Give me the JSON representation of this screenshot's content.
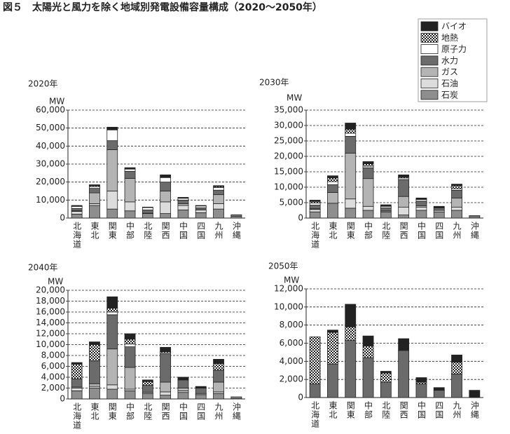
{
  "title": "図５　太陽光と風力を除く地域別発電設備容量構成（2020〜2050年）",
  "legend": {
    "position": "upper right",
    "items": [
      {
        "name": "バイオ",
        "color": "#222222"
      },
      {
        "name": "地熱",
        "color": "#ffffff",
        "pattern": "checker"
      },
      {
        "name": "原子力",
        "color": "#ffffff"
      },
      {
        "name": "水力",
        "color": "#6b6b6b"
      },
      {
        "name": "ガス",
        "color": "#b4b4b4"
      },
      {
        "name": "石油",
        "color": "#dcdcdc"
      },
      {
        "name": "石炭",
        "color": "#8e8e8e"
      }
    ]
  },
  "chart_data": [
    {
      "type": "bar",
      "stacked": true,
      "title": "2020年",
      "y_label": "MW",
      "grid": true,
      "categories": [
        "北海道",
        "東北",
        "関東",
        "中部",
        "北陸",
        "関西",
        "中国",
        "四国",
        "九州",
        "沖縄"
      ],
      "ylim": [
        0,
        60000
      ],
      "yticks": [
        0,
        {
          "value": 10000,
          "label": "10,000"
        },
        {
          "value": 20000,
          "label": "20,000"
        },
        {
          "value": 30000,
          "label": "30,000"
        },
        {
          "value": 40000,
          "label": "40,000"
        },
        {
          "value": 50000,
          "label": "50,000"
        },
        {
          "value": 60000,
          "label": "60,000"
        }
      ],
      "series": [
        {
          "values": [
            300,
            500,
            1500,
            800,
            300,
            1500,
            500,
            300,
            500,
            0
          ]
        },
        {
          "values": [
            200,
            500,
            0,
            0,
            0,
            0,
            0,
            0,
            500,
            0
          ]
        },
        {
          "values": [
            1200,
            1000,
            6000,
            1200,
            1300,
            2500,
            1000,
            1000,
            1500,
            0
          ]
        },
        {
          "values": [
            1300,
            2500,
            5000,
            4000,
            1800,
            5000,
            2000,
            1200,
            2500,
            0
          ]
        },
        {
          "values": [
            300,
            6000,
            23000,
            13000,
            0,
            6000,
            1000,
            0,
            5000,
            200
          ]
        },
        {
          "values": [
            1500,
            1000,
            10000,
            5000,
            200,
            6500,
            2500,
            1500,
            3000,
            600
          ]
        },
        {
          "values": [
            2200,
            7000,
            5000,
            4000,
            2500,
            2500,
            4500,
            3000,
            5000,
            1000
          ]
        }
      ]
    },
    {
      "type": "bar",
      "stacked": true,
      "title": "2030年",
      "y_label": "MW",
      "grid": true,
      "categories": [
        "北海道",
        "東北",
        "関東",
        "中部",
        "北陸",
        "関西",
        "中国",
        "四国",
        "九州",
        "沖縄"
      ],
      "ylim": [
        0,
        35000
      ],
      "yticks": [
        0,
        {
          "value": 5000,
          "label": "5,000"
        },
        {
          "value": 10000,
          "label": "10,000"
        },
        {
          "value": 15000,
          "label": "15,000"
        },
        {
          "value": 20000,
          "label": "20,000"
        },
        {
          "value": 25000,
          "label": "25,000"
        },
        {
          "value": 30000,
          "label": "30,000"
        },
        {
          "value": 35000,
          "label": "35,000"
        }
      ],
      "series": [
        {
          "values": [
            400,
            700,
            2000,
            700,
            500,
            700,
            500,
            500,
            500,
            0
          ]
        },
        {
          "values": [
            500,
            1200,
            1300,
            800,
            0,
            300,
            0,
            0,
            1000,
            0
          ]
        },
        {
          "values": [
            700,
            1000,
            1000,
            500,
            500,
            500,
            500,
            0,
            500,
            0
          ]
        },
        {
          "values": [
            1200,
            2500,
            5500,
            3500,
            1000,
            5500,
            1500,
            800,
            2500,
            0
          ]
        },
        {
          "values": [
            200,
            3500,
            14800,
            9000,
            0,
            3500,
            500,
            0,
            3000,
            0
          ]
        },
        {
          "values": [
            800,
            0,
            3000,
            1300,
            300,
            2500,
            1000,
            500,
            1000,
            300
          ]
        },
        {
          "values": [
            2000,
            4800,
            3200,
            2500,
            2000,
            1000,
            2500,
            2000,
            2500,
            500
          ]
        }
      ]
    },
    {
      "type": "bar",
      "stacked": true,
      "title": "2040年",
      "y_label": "MW",
      "grid": true,
      "categories": [
        "北海道",
        "東北",
        "関東",
        "中部",
        "北陸",
        "関西",
        "中国",
        "四国",
        "九州",
        "沖縄"
      ],
      "ylim": [
        0,
        20000
      ],
      "yticks": [
        0,
        {
          "value": 2000,
          "label": "2,000"
        },
        {
          "value": 4000,
          "label": "4,000"
        },
        {
          "value": 6000,
          "label": "6,000"
        },
        {
          "value": 8000,
          "label": "8,000"
        },
        {
          "value": 10000,
          "label": "10,000"
        },
        {
          "value": 12000,
          "label": "12,000"
        },
        {
          "value": 14000,
          "label": "14,000"
        },
        {
          "value": 16000,
          "label": "16,000"
        },
        {
          "value": 18000,
          "label": "18,000"
        },
        {
          "value": 20000,
          "label": "20,000"
        }
      ],
      "series": [
        {
          "values": [
            300,
            500,
            2100,
            1000,
            300,
            800,
            500,
            300,
            800,
            0
          ]
        },
        {
          "values": [
            2700,
            3000,
            700,
            900,
            700,
            200,
            0,
            0,
            1200,
            0
          ]
        },
        {
          "values": [
            0,
            0,
            500,
            500,
            0,
            200,
            0,
            0,
            0,
            0
          ]
        },
        {
          "values": [
            1500,
            4200,
            6300,
            3800,
            1300,
            5200,
            1500,
            1000,
            2200,
            0
          ]
        },
        {
          "values": [
            200,
            500,
            6600,
            4000,
            0,
            1800,
            500,
            0,
            1800,
            0
          ]
        },
        {
          "values": [
            500,
            300,
            800,
            300,
            200,
            600,
            300,
            200,
            300,
            200
          ]
        },
        {
          "values": [
            1500,
            2000,
            1800,
            1500,
            1000,
            700,
            1200,
            800,
            1000,
            200
          ]
        }
      ]
    },
    {
      "type": "bar",
      "stacked": true,
      "title": "2050年",
      "y_label": "MW",
      "grid": true,
      "categories": [
        "北海道",
        "東北",
        "関東",
        "中部",
        "北陸",
        "関西",
        "中国",
        "四国",
        "九州",
        "沖縄"
      ],
      "ylim": [
        0,
        12000
      ],
      "yticks": [
        0,
        {
          "value": 2000,
          "label": "2,000"
        },
        {
          "value": 4000,
          "label": "4,000"
        },
        {
          "value": 6000,
          "label": "6,000"
        },
        {
          "value": 8000,
          "label": "8,000"
        },
        {
          "value": 10000,
          "label": "10,000"
        },
        {
          "value": 12000,
          "label": "12,000"
        }
      ],
      "series": [
        {
          "values": [
            0,
            250,
            2500,
            1100,
            200,
            1300,
            500,
            300,
            800,
            800
          ]
        },
        {
          "values": [
            5200,
            3500,
            1500,
            1300,
            1000,
            0,
            200,
            0,
            1300,
            0
          ]
        },
        {
          "values": [
            0,
            0,
            0,
            0,
            0,
            0,
            0,
            0,
            0,
            0
          ]
        },
        {
          "values": [
            1500,
            3700,
            6300,
            4400,
            1700,
            5200,
            1500,
            800,
            2600,
            0
          ]
        },
        {
          "values": [
            0,
            0,
            0,
            0,
            0,
            0,
            0,
            0,
            0,
            0
          ]
        },
        {
          "values": [
            0,
            0,
            0,
            0,
            0,
            0,
            0,
            0,
            0,
            0
          ]
        },
        {
          "values": [
            0,
            0,
            0,
            0,
            0,
            0,
            0,
            0,
            0,
            0
          ]
        }
      ]
    }
  ]
}
